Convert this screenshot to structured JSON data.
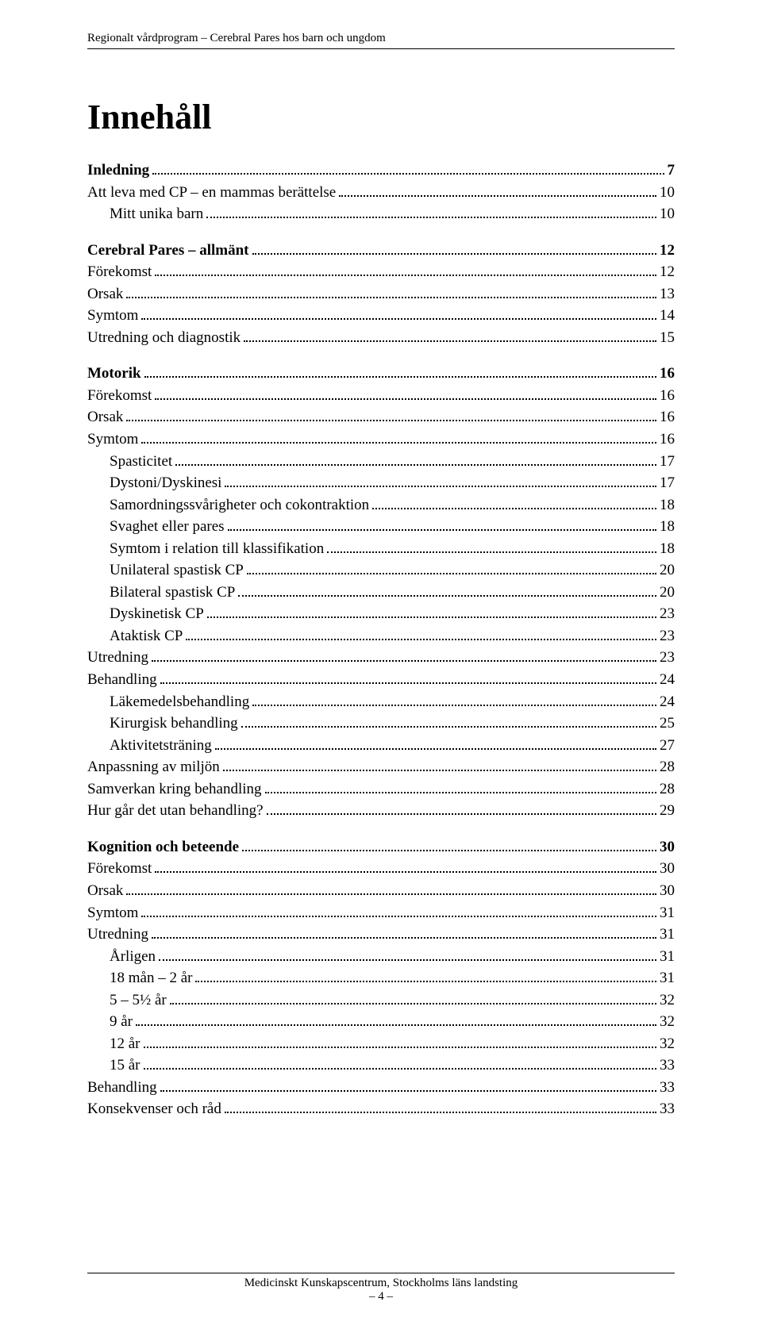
{
  "runningHeader": "Regionalt vårdprogram – Cerebral Pares hos barn och ungdom",
  "title": "Innehåll",
  "toc": [
    {
      "label": "Inledning",
      "page": "7",
      "level": 1,
      "spaced": false
    },
    {
      "label": "Att leva med CP – en mammas  berättelse",
      "page": "10",
      "level": 2,
      "spaced": false
    },
    {
      "label": "Mitt unika barn",
      "page": "10",
      "level": 3,
      "spaced": false
    },
    {
      "label": "Cerebral Pares – allmänt",
      "page": "12",
      "level": 1,
      "spaced": true
    },
    {
      "label": "Förekomst",
      "page": "12",
      "level": 2,
      "spaced": false
    },
    {
      "label": "Orsak",
      "page": "13",
      "level": 2,
      "spaced": false
    },
    {
      "label": "Symtom",
      "page": "14",
      "level": 2,
      "spaced": false
    },
    {
      "label": "Utredning och diagnostik",
      "page": "15",
      "level": 2,
      "spaced": false
    },
    {
      "label": "Motorik",
      "page": "16",
      "level": 1,
      "spaced": true
    },
    {
      "label": "Förekomst",
      "page": "16",
      "level": 2,
      "spaced": false
    },
    {
      "label": "Orsak",
      "page": "16",
      "level": 2,
      "spaced": false
    },
    {
      "label": "Symtom",
      "page": "16",
      "level": 2,
      "spaced": false
    },
    {
      "label": "Spasticitet",
      "page": "17",
      "level": 3,
      "spaced": false
    },
    {
      "label": "Dystoni/Dyskinesi",
      "page": "17",
      "level": 3,
      "spaced": false
    },
    {
      "label": "Samordningssvårigheter och cokontraktion",
      "page": "18",
      "level": 3,
      "spaced": false
    },
    {
      "label": "Svaghet eller pares",
      "page": "18",
      "level": 3,
      "spaced": false
    },
    {
      "label": "Symtom i relation till klassifikation",
      "page": "18",
      "level": 3,
      "spaced": false
    },
    {
      "label": "Unilateral spastisk CP",
      "page": "20",
      "level": 3,
      "spaced": false
    },
    {
      "label": "Bilateral spastisk CP",
      "page": "20",
      "level": 3,
      "spaced": false
    },
    {
      "label": "Dyskinetisk CP",
      "page": "23",
      "level": 3,
      "spaced": false
    },
    {
      "label": "Ataktisk CP",
      "page": "23",
      "level": 3,
      "spaced": false
    },
    {
      "label": "Utredning",
      "page": "23",
      "level": 2,
      "spaced": false
    },
    {
      "label": "Behandling",
      "page": "24",
      "level": 2,
      "spaced": false
    },
    {
      "label": "Läkemedelsbehandling",
      "page": "24",
      "level": 3,
      "spaced": false
    },
    {
      "label": "Kirurgisk behandling",
      "page": "25",
      "level": 3,
      "spaced": false
    },
    {
      "label": "Aktivitetsträning",
      "page": "27",
      "level": 3,
      "spaced": false
    },
    {
      "label": "Anpassning av miljön",
      "page": "28",
      "level": 2,
      "spaced": false
    },
    {
      "label": "Samverkan kring behandling",
      "page": "28",
      "level": 2,
      "spaced": false
    },
    {
      "label": "Hur går det utan behandling?",
      "page": "29",
      "level": 2,
      "spaced": false
    },
    {
      "label": "Kognition och beteende",
      "page": "30",
      "level": 1,
      "spaced": true
    },
    {
      "label": "Förekomst",
      "page": "30",
      "level": 2,
      "spaced": false
    },
    {
      "label": "Orsak",
      "page": "30",
      "level": 2,
      "spaced": false
    },
    {
      "label": "Symtom",
      "page": "31",
      "level": 2,
      "spaced": false
    },
    {
      "label": "Utredning",
      "page": "31",
      "level": 2,
      "spaced": false
    },
    {
      "label": "Årligen",
      "page": "31",
      "level": 3,
      "spaced": false
    },
    {
      "label": "18 mån – 2 år",
      "page": "31",
      "level": 3,
      "spaced": false
    },
    {
      "label": "5 – 5½ år",
      "page": "32",
      "level": 3,
      "spaced": false
    },
    {
      "label": "9 år",
      "page": "32",
      "level": 3,
      "spaced": false
    },
    {
      "label": "12 år",
      "page": "32",
      "level": 3,
      "spaced": false
    },
    {
      "label": "15 år",
      "page": "33",
      "level": 3,
      "spaced": false
    },
    {
      "label": "Behandling",
      "page": "33",
      "level": 2,
      "spaced": false
    },
    {
      "label": "Konsekvenser och råd",
      "page": "33",
      "level": 2,
      "spaced": false
    }
  ],
  "footer": {
    "line1": "Medicinskt Kunskapscentrum, Stockholms läns landsting",
    "line2": "– 4 –"
  },
  "style": {
    "pageWidth": 960,
    "pageHeight": 1675,
    "background": "#ffffff",
    "textColor": "#000000",
    "fontFamily": "Times New Roman",
    "titleFontSize": 44,
    "bodyFontSize": 19,
    "headerFontSize": 15,
    "footerFontSize": 15,
    "indentL3": 28,
    "ruleColor": "#000000"
  }
}
